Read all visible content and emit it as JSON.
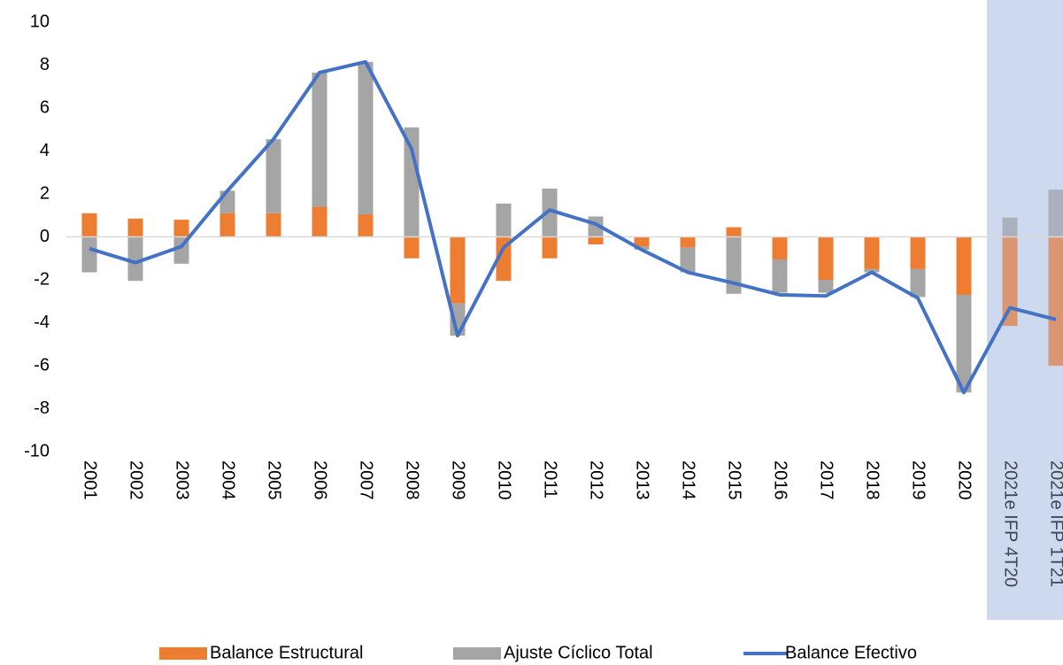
{
  "chart_data": {
    "type": "bar-line",
    "categories": [
      "2001",
      "2002",
      "2003",
      "2004",
      "2005",
      "2006",
      "2007",
      "2008",
      "2009",
      "2010",
      "2011",
      "2012",
      "2013",
      "2014",
      "2015",
      "2016",
      "2017",
      "2018",
      "2019",
      "2020",
      "2021e IFP 4T20",
      "2021e IFP 1T21"
    ],
    "series": [
      {
        "name": "Balance Estructural",
        "type": "bar",
        "color": "#ed7d31",
        "values": [
          1.1,
          0.85,
          0.8,
          1.1,
          1.1,
          1.4,
          1.05,
          -1.0,
          -3.1,
          -2.05,
          -1.0,
          -0.35,
          -0.45,
          -0.5,
          0.45,
          -1.05,
          -2.0,
          -1.5,
          -1.5,
          -2.7,
          -4.15,
          -6.0
        ]
      },
      {
        "name": "Ajuste Cíclico Total",
        "type": "bar",
        "color": "#a5a5a5",
        "values": [
          -1.65,
          -2.05,
          -1.25,
          1.05,
          3.45,
          6.25,
          7.1,
          5.1,
          -1.5,
          1.55,
          2.25,
          0.95,
          -0.15,
          -1.15,
          -2.65,
          -1.55,
          -0.6,
          -0.15,
          -1.3,
          -4.55,
          0.9,
          2.2
        ]
      },
      {
        "name": "Balance Efectivo",
        "type": "line",
        "color": "#4472c4",
        "values": [
          -0.55,
          -1.2,
          -0.45,
          2.15,
          4.55,
          7.65,
          8.15,
          4.1,
          -4.6,
          -0.5,
          1.25,
          0.6,
          -0.6,
          -1.65,
          -2.15,
          -2.7,
          -2.75,
          -1.65,
          -2.85,
          -7.25,
          -3.3,
          -3.85
        ]
      }
    ],
    "ylim": [
      -10,
      10
    ],
    "yticks": [
      -10,
      -8,
      -6,
      -4,
      -2,
      0,
      2,
      4,
      6,
      8,
      10
    ]
  }
}
